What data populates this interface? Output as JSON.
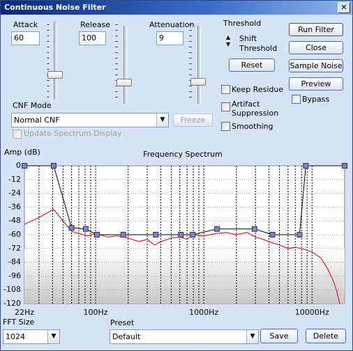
{
  "window": {
    "title": "Continuous Noise Filter"
  },
  "controls": {
    "attack": {
      "label": "Attack",
      "value": "60"
    },
    "release": {
      "label": "Release",
      "value": "100"
    },
    "attenuation": {
      "label": "Attenuation",
      "value": "9"
    },
    "threshold": {
      "label": "Threshold",
      "shift_label": "Shift Threshold",
      "reset": "Reset"
    },
    "checkboxes": {
      "keep_residue": "Keep Residue",
      "artifact_suppression": "Artifact Suppression",
      "smoothing": "Smoothing",
      "bypass": "Bypass",
      "update_spectrum": "Update Spectrum Display"
    },
    "buttons": {
      "run_filter": "Run Filter",
      "close": "Close",
      "sample_noise": "Sample Noise",
      "preview": "Preview",
      "freeze": "Freeze",
      "save": "Save",
      "delete": "Delete"
    },
    "cnf_mode": {
      "label": "CNF Mode",
      "value": "Normal CNF"
    },
    "fft_size": {
      "label": "FFT Size",
      "value": "1024"
    },
    "preset": {
      "label": "Preset",
      "value": "Default"
    }
  },
  "chart_data": {
    "type": "line",
    "title": "Frequency Spectrum",
    "ylabel": "Amp (dB)",
    "xscale": "log",
    "xlim": [
      22,
      20000
    ],
    "ylim": [
      -120,
      0
    ],
    "xticks": [
      {
        "value": 22,
        "label": "22Hz"
      },
      {
        "value": 100,
        "label": "100Hz"
      },
      {
        "value": 1000,
        "label": "1000Hz"
      },
      {
        "value": 10000,
        "label": "10000Hz"
      }
    ],
    "xgrid": [
      30,
      40,
      50,
      60,
      70,
      80,
      90,
      100,
      200,
      300,
      400,
      500,
      600,
      700,
      800,
      900,
      1000,
      2000,
      3000,
      4000,
      5000,
      6000,
      7000,
      8000,
      9000,
      10000
    ],
    "yticks": [
      0,
      -12,
      -24,
      -36,
      -48,
      -60,
      -72,
      -84,
      -96,
      -108,
      -120
    ],
    "series": [
      {
        "color": "#e00000",
        "markers": false,
        "x": [
          22,
          30,
          41,
          50,
          60,
          70,
          85,
          100,
          130,
          160,
          200,
          250,
          300,
          350,
          400,
          500,
          600,
          700,
          800,
          1000,
          1300,
          1600,
          2000,
          2500,
          3000,
          3500,
          4000,
          5000,
          6000,
          7000,
          8000,
          10000,
          12000,
          14000,
          16000,
          17000,
          18000
        ],
        "values": [
          -51,
          -45,
          -38,
          -48,
          -57,
          -59,
          -61,
          -59,
          -62,
          -61,
          -63,
          -66,
          -64,
          -69,
          -66,
          -63,
          -62,
          -64,
          -60,
          -61,
          -59,
          -58,
          -60,
          -58,
          -62,
          -64,
          -66,
          -69,
          -72,
          -71,
          -72,
          -75,
          -80,
          -90,
          -102,
          -110,
          -120
        ]
      },
      {
        "color": "#000000",
        "markers": true,
        "marker_color": "#7b83d6",
        "x": [
          22,
          41,
          60,
          81,
          103,
          180,
          360,
          614,
          790,
          1325,
          2940,
          4310,
          7670,
          8750,
          20000
        ],
        "values": [
          0,
          0,
          -54,
          -55,
          -60,
          -60,
          -60,
          -60,
          -60,
          -55,
          -55,
          -60,
          -60,
          0,
          0
        ]
      }
    ]
  }
}
